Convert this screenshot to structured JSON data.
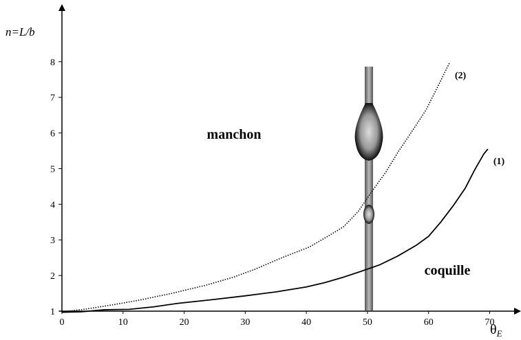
{
  "chart_data": {
    "type": "line",
    "y_label": "n=L/b",
    "x_label": "θ",
    "x_label_subscript": "E",
    "annotations": [
      "manchon",
      "coquille"
    ],
    "xlim": [
      0,
      74
    ],
    "ylim": [
      1,
      9.5
    ],
    "xticks": [
      0,
      10,
      20,
      30,
      40,
      50,
      60,
      70
    ],
    "yticks": [
      1,
      2,
      3,
      4,
      5,
      6,
      7,
      8
    ],
    "grid": false,
    "series": [
      {
        "name": "(1)",
        "color": "#000000",
        "line_style": "solid",
        "x": [
          0,
          3,
          7,
          11,
          15,
          19,
          25,
          30,
          35,
          40,
          43,
          46,
          49,
          52,
          55,
          58,
          60,
          62,
          64,
          66,
          67.5,
          69,
          69.7
        ],
        "values": [
          0.97,
          0.98,
          1.04,
          1.05,
          1.12,
          1.22,
          1.33,
          1.43,
          1.54,
          1.68,
          1.8,
          1.95,
          2.12,
          2.3,
          2.55,
          2.85,
          3.1,
          3.5,
          3.95,
          4.45,
          4.95,
          5.4,
          5.55
        ]
      },
      {
        "name": "(2)",
        "color": "#000000",
        "line_style": "dotted",
        "x": [
          0,
          4,
          8,
          12.4,
          18,
          23.6,
          28,
          31.5,
          36,
          40.5,
          44,
          46.1,
          48.5,
          50.6,
          53,
          55.1,
          57.5,
          59.6,
          61.5,
          63.4
        ],
        "values": [
          0.98,
          1.06,
          1.17,
          1.3,
          1.5,
          1.73,
          1.95,
          2.17,
          2.5,
          2.8,
          3.15,
          3.37,
          3.8,
          4.33,
          4.9,
          5.49,
          6.1,
          6.65,
          7.3,
          7.96
        ]
      }
    ]
  }
}
